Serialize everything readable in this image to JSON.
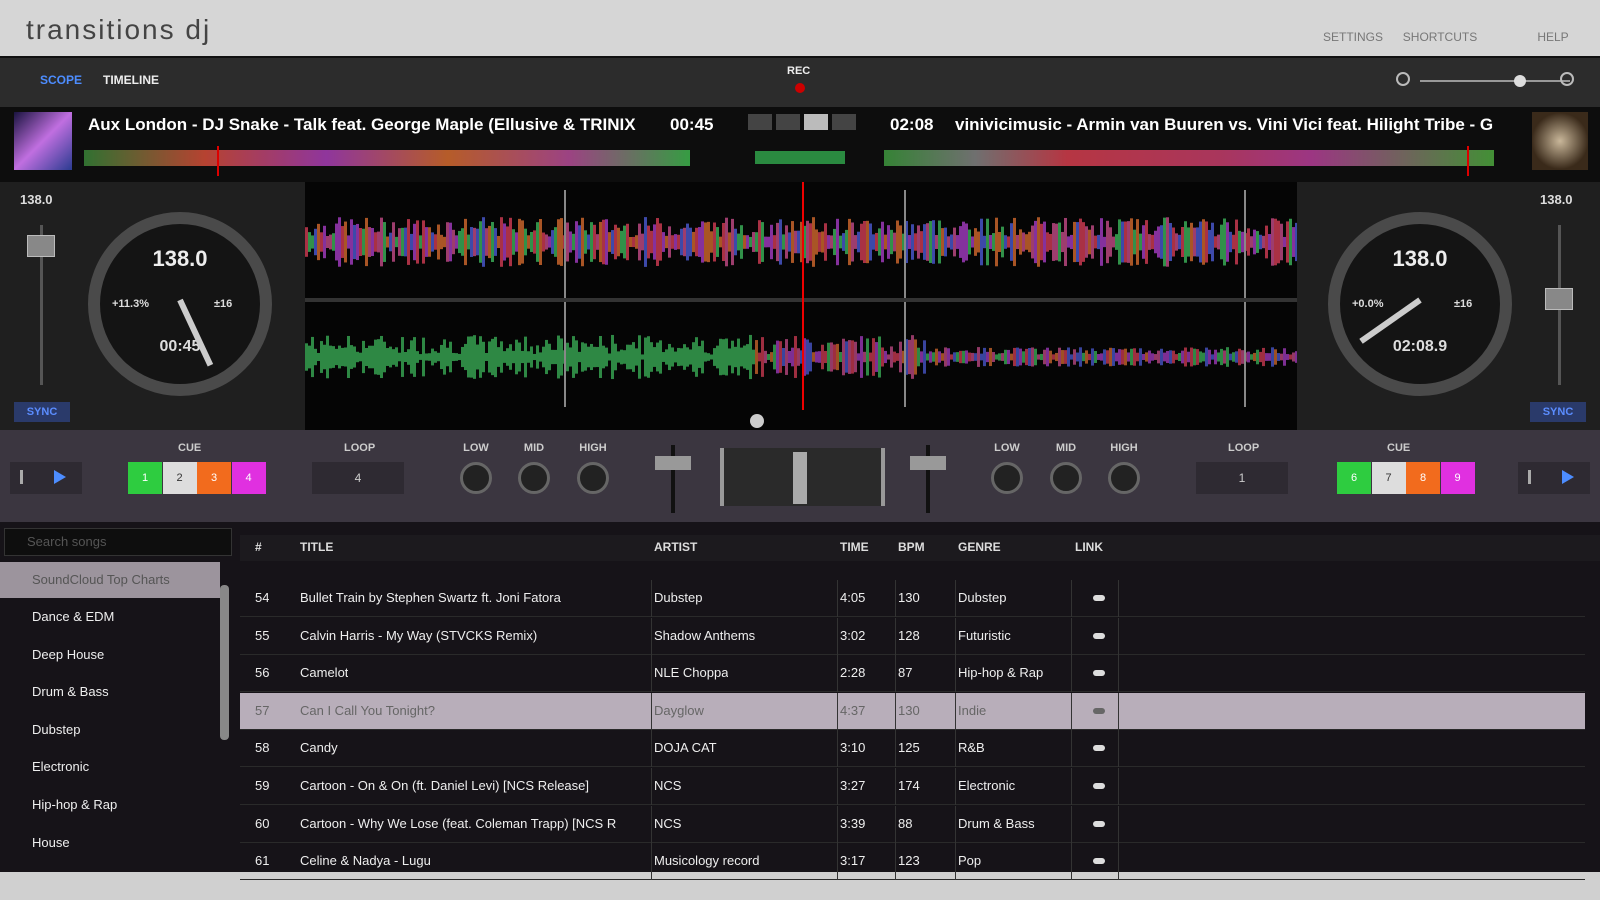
{
  "header": {
    "title": "transitions dj",
    "menu": [
      "SETTINGS",
      "SHORTCUTS",
      "HELP"
    ]
  },
  "toolbar": {
    "tabs": [
      "SCOPE",
      "TIMELINE"
    ],
    "rec": "REC"
  },
  "deck_a": {
    "track": "Aux London - DJ Snake - Talk feat. George Maple (Ellusive & TRINIX",
    "time": "00:45",
    "bpm": "138.0",
    "dial_bpm": "138.0",
    "pitch": "+11.3%",
    "range": "±16",
    "elapsed": "00:45",
    "sync": "SYNC",
    "cue_label": "CUE",
    "cues": [
      "1",
      "2",
      "3",
      "4"
    ],
    "loop_label": "LOOP",
    "loop": "4",
    "eq": [
      "LOW",
      "MID",
      "HIGH"
    ]
  },
  "deck_b": {
    "track": "vinivicimusic - Armin van Buuren vs. Vini Vici feat. Hilight Tribe - G",
    "time": "02:08",
    "bpm": "138.0",
    "dial_bpm": "138.0",
    "pitch": "+0.0%",
    "range": "±16",
    "elapsed": "02:08.9",
    "sync": "SYNC",
    "cue_label": "CUE",
    "cues": [
      "6",
      "7",
      "8",
      "9"
    ],
    "loop_label": "LOOP",
    "loop": "1",
    "eq": [
      "LOW",
      "MID",
      "HIGH"
    ]
  },
  "library": {
    "search_placeholder": "Search songs",
    "source": "SoundCloud Top Charts",
    "genres": [
      "Dance & EDM",
      "Deep House",
      "Drum & Bass",
      "Dubstep",
      "Electronic",
      "Hip-hop & Rap",
      "House"
    ],
    "columns": [
      "#",
      "TITLE",
      "ARTIST",
      "TIME",
      "BPM",
      "GENRE",
      "LINK"
    ],
    "rows": [
      [
        "54",
        "Bullet Train by Stephen Swartz ft. Joni Fatora",
        "Dubstep",
        "4:05",
        "130",
        "Dubstep"
      ],
      [
        "55",
        "Calvin Harris - My Way (STVCKS Remix)",
        "Shadow Anthems",
        "3:02",
        "128",
        "Futuristic"
      ],
      [
        "56",
        "Camelot",
        "NLE Choppa",
        "2:28",
        "87",
        "Hip-hop & Rap"
      ],
      [
        "57",
        "Can I Call You Tonight?",
        "Dayglow",
        "4:37",
        "130",
        "Indie"
      ],
      [
        "58",
        "Candy",
        "DOJA CAT",
        "3:10",
        "125",
        "R&B"
      ],
      [
        "59",
        "Cartoon - On & On (ft. Daniel Levi) [NCS Release]",
        "NCS",
        "3:27",
        "174",
        "Electronic"
      ],
      [
        "60",
        "Cartoon - Why We Lose (feat. Coleman Trapp) [NCS R",
        "NCS",
        "3:39",
        "88",
        "Drum & Bass"
      ],
      [
        "61",
        "Celine & Nadya - Lugu",
        "Musicology record",
        "3:17",
        "123",
        "Pop"
      ]
    ]
  }
}
